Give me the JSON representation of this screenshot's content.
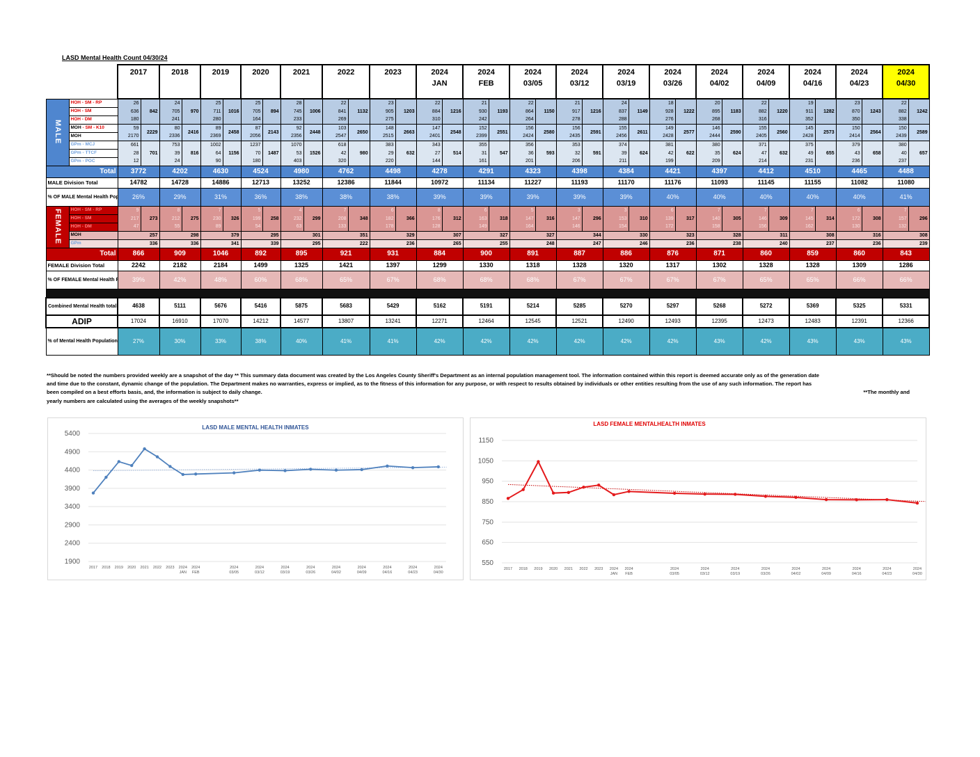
{
  "title": "LASD Mental Health Count 04/30/24",
  "highlight_color": "#ffff00",
  "periods": [
    {
      "l1": "2017",
      "l2": ""
    },
    {
      "l1": "2018",
      "l2": ""
    },
    {
      "l1": "2019",
      "l2": ""
    },
    {
      "l1": "2020",
      "l2": ""
    },
    {
      "l1": "2021",
      "l2": ""
    },
    {
      "l1": "2022",
      "l2": ""
    },
    {
      "l1": "2023",
      "l2": ""
    },
    {
      "l1": "2024",
      "l2": "JAN"
    },
    {
      "l1": "2024",
      "l2": "FEB"
    },
    {
      "l1": "2024",
      "l2": "03/05"
    },
    {
      "l1": "2024",
      "l2": "03/12"
    },
    {
      "l1": "2024",
      "l2": "03/19"
    },
    {
      "l1": "2024",
      "l2": "03/26"
    },
    {
      "l1": "2024",
      "l2": "04/02"
    },
    {
      "l1": "2024",
      "l2": "04/09"
    },
    {
      "l1": "2024",
      "l2": "04/16"
    },
    {
      "l1": "2024",
      "l2": "04/23"
    },
    {
      "l1": "2024",
      "l2": "04/30"
    }
  ],
  "male": {
    "label": "MALE",
    "hoh_labels": [
      "HOH - SM - RP",
      "HOH - SM",
      "HOH - DM"
    ],
    "moh_labels": [
      [
        "MOH ",
        "- SM - K10"
      ],
      [
        "MOH",
        ""
      ]
    ],
    "gpm_labels": [
      "GPm - MCJ",
      "GPm - TTCF",
      "GPm - POC"
    ],
    "hoh": [
      [
        "26",
        "636",
        "180",
        "842"
      ],
      [
        "24",
        "705",
        "241",
        "970"
      ],
      [
        "25",
        "711",
        "280",
        "1016"
      ],
      [
        "25",
        "705",
        "164",
        "894"
      ],
      [
        "28",
        "745",
        "233",
        "1006"
      ],
      [
        "22",
        "841",
        "269",
        "1132"
      ],
      [
        "23",
        "905",
        "275",
        "1203"
      ],
      [
        "22",
        "884",
        "310",
        "1216"
      ],
      [
        "21",
        "930",
        "242",
        "1193"
      ],
      [
        "22",
        "864",
        "264",
        "1150"
      ],
      [
        "21",
        "917",
        "278",
        "1216"
      ],
      [
        "24",
        "837",
        "288",
        "1149"
      ],
      [
        "18",
        "928",
        "276",
        "1222"
      ],
      [
        "20",
        "895",
        "268",
        "1183"
      ],
      [
        "22",
        "882",
        "316",
        "1220"
      ],
      [
        "19",
        "911",
        "352",
        "1282"
      ],
      [
        "23",
        "870",
        "350",
        "1243"
      ],
      [
        "22",
        "882",
        "338",
        "1242"
      ]
    ],
    "moh": [
      [
        "59",
        "2170",
        "2229"
      ],
      [
        "80",
        "2336",
        "2416"
      ],
      [
        "89",
        "2369",
        "2458"
      ],
      [
        "87",
        "2056",
        "2143"
      ],
      [
        "92",
        "2356",
        "2448"
      ],
      [
        "103",
        "2547",
        "2650"
      ],
      [
        "148",
        "2515",
        "2663"
      ],
      [
        "147",
        "2401",
        "2548"
      ],
      [
        "152",
        "2399",
        "2551"
      ],
      [
        "156",
        "2424",
        "2580"
      ],
      [
        "156",
        "2435",
        "2591"
      ],
      [
        "155",
        "2456",
        "2611"
      ],
      [
        "149",
        "2428",
        "2577"
      ],
      [
        "146",
        "2444",
        "2590"
      ],
      [
        "155",
        "2405",
        "2560"
      ],
      [
        "145",
        "2428",
        "2573"
      ],
      [
        "150",
        "2414",
        "2564"
      ],
      [
        "150",
        "2439",
        "2589"
      ]
    ],
    "gpm": [
      [
        "661",
        "28",
        "12",
        "701"
      ],
      [
        "753",
        "39",
        "24",
        "816"
      ],
      [
        "1002",
        "64",
        "90",
        "1156"
      ],
      [
        "1237",
        "70",
        "180",
        "1487"
      ],
      [
        "1070",
        "53",
        "403",
        "1526"
      ],
      [
        "618",
        "42",
        "320",
        "980"
      ],
      [
        "383",
        "29",
        "220",
        "632"
      ],
      [
        "343",
        "27",
        "144",
        "514"
      ],
      [
        "355",
        "31",
        "161",
        "547"
      ],
      [
        "356",
        "36",
        "201",
        "593"
      ],
      [
        "353",
        "32",
        "206",
        "591"
      ],
      [
        "374",
        "39",
        "211",
        "624"
      ],
      [
        "381",
        "42",
        "199",
        "622"
      ],
      [
        "380",
        "35",
        "209",
        "624"
      ],
      [
        "371",
        "47",
        "214",
        "632"
      ],
      [
        "375",
        "49",
        "231",
        "655"
      ],
      [
        "379",
        "43",
        "236",
        "658"
      ],
      [
        "380",
        "40",
        "237",
        "657"
      ]
    ],
    "total_label": "Total",
    "total": [
      "3772",
      "4202",
      "4630",
      "4524",
      "4980",
      "4762",
      "4498",
      "4278",
      "4291",
      "4323",
      "4398",
      "4384",
      "4421",
      "4397",
      "4412",
      "4510",
      "4465",
      "4488"
    ],
    "division_label": "MALE Division Total",
    "division": [
      "14782",
      "14728",
      "14886",
      "12713",
      "13252",
      "12386",
      "11844",
      "10972",
      "11134",
      "11227",
      "11193",
      "11170",
      "11176",
      "11093",
      "11145",
      "11155",
      "11082",
      "11080"
    ],
    "pct_label": "% OF MALE Mental Health Population",
    "pct": [
      "26%",
      "29%",
      "31%",
      "36%",
      "38%",
      "38%",
      "38%",
      "39%",
      "39%",
      "39%",
      "39%",
      "39%",
      "40%",
      "40%",
      "40%",
      "40%",
      "40%",
      "41%"
    ]
  },
  "female": {
    "label": "FEMALE",
    "hoh_labels": [
      "HOH - SM - RP",
      "HOH - SM",
      "HOH - DM"
    ],
    "moh_label": "MOH",
    "gpm_label": "GPm",
    "hoh": [
      [
        "9",
        "217",
        "47",
        "273"
      ],
      [
        "8",
        "212",
        "55",
        "275"
      ],
      [
        "7",
        "230",
        "89",
        "326"
      ],
      [
        "5",
        "199",
        "54",
        "258"
      ],
      [
        "4",
        "232",
        "63",
        "299"
      ],
      [
        "7",
        "208",
        "133",
        "348"
      ],
      [
        "6",
        "182",
        "178",
        "366"
      ],
      [
        "8",
        "176",
        "128",
        "312"
      ],
      [
        "6",
        "163",
        "149",
        "318"
      ],
      [
        "5",
        "147",
        "164",
        "316"
      ],
      [
        "3",
        "147",
        "146",
        "296"
      ],
      [
        "3",
        "153",
        "154",
        "310"
      ],
      [
        "6",
        "139",
        "172",
        "317"
      ],
      [
        "7",
        "140",
        "158",
        "305"
      ],
      [
        "7",
        "146",
        "156",
        "309"
      ],
      [
        "7",
        "145",
        "162",
        "314"
      ],
      [
        "6",
        "172",
        "130",
        "308"
      ],
      [
        "7",
        "157",
        "132",
        "296"
      ]
    ],
    "moh": [
      "257",
      "298",
      "379",
      "295",
      "301",
      "351",
      "329",
      "307",
      "327",
      "327",
      "344",
      "330",
      "323",
      "328",
      "311",
      "308",
      "316",
      "308"
    ],
    "gpm": [
      "336",
      "336",
      "341",
      "339",
      "295",
      "222",
      "236",
      "265",
      "255",
      "248",
      "247",
      "246",
      "236",
      "238",
      "240",
      "237",
      "236",
      "239"
    ],
    "total_label": "Total",
    "total": [
      "866",
      "909",
      "1046",
      "892",
      "895",
      "921",
      "931",
      "884",
      "900",
      "891",
      "887",
      "886",
      "876",
      "871",
      "860",
      "859",
      "860",
      "843"
    ],
    "division_label": "FEMALE Division Total",
    "division": [
      "2242",
      "2182",
      "2184",
      "1499",
      "1325",
      "1421",
      "1397",
      "1299",
      "1330",
      "1318",
      "1328",
      "1320",
      "1317",
      "1302",
      "1328",
      "1328",
      "1309",
      "1286"
    ],
    "pct_label": "% OF FEMALE Mental Health Population",
    "pct": [
      "39%",
      "42%",
      "48%",
      "60%",
      "68%",
      "65%",
      "67%",
      "68%",
      "68%",
      "68%",
      "67%",
      "67%",
      "67%",
      "67%",
      "65%",
      "65%",
      "66%",
      "66%"
    ]
  },
  "combined": {
    "label": "Combined Mental Health total",
    "values": [
      "4638",
      "5111",
      "5676",
      "5416",
      "5875",
      "5683",
      "5429",
      "5162",
      "5191",
      "5214",
      "5285",
      "5270",
      "5297",
      "5268",
      "5272",
      "5369",
      "5325",
      "5331"
    ]
  },
  "adip": {
    "label": "ADIP",
    "values": [
      "17024",
      "16910",
      "17070",
      "14212",
      "14577",
      "13807",
      "13241",
      "12271",
      "12464",
      "12545",
      "12521",
      "12490",
      "12493",
      "12395",
      "12473",
      "12483",
      "12391",
      "12366"
    ]
  },
  "mh_pct": {
    "label": "% of Mental Health Population",
    "values": [
      "27%",
      "30%",
      "33%",
      "38%",
      "40%",
      "41%",
      "41%",
      "42%",
      "42%",
      "42%",
      "42%",
      "42%",
      "42%",
      "43%",
      "42%",
      "43%",
      "43%",
      "43%"
    ]
  },
  "notes": {
    "lines": [
      "**Should be noted the numbers provided weekly are a snapshot of the day ** This summary data document was created by the Los Angeles County Sheriff's Department as an internal population management tool.  The information contained within this report is deemed accurate only as of the generation date",
      "and time due to the constant, dynamic change of the population.  The Department makes no warranties, express or implied, as to the fitness of this information for any purpose, or with respect to results obtained by individuals or other entities resulting from the use of any such information.  The report has",
      "been compiled on a best efforts basis, and, the information is subject to daily change.",
      "yearly numbers are calculated using the averages of the weekly snapshots**"
    ],
    "line3_right": "**The monthly and"
  },
  "chart_data": [
    {
      "type": "line",
      "title": "LASD MALE MENTAL HEALTH INMATES",
      "color": "#4f81bd",
      "trendline": "linear",
      "categories": [
        [
          "2017",
          ""
        ],
        [
          "2018",
          ""
        ],
        [
          "2019",
          ""
        ],
        [
          "2020",
          ""
        ],
        [
          "2021",
          ""
        ],
        [
          "2022",
          ""
        ],
        [
          "2023",
          ""
        ],
        [
          "2024",
          "JAN"
        ],
        [
          "2024",
          "FEB"
        ],
        [
          "2024",
          "03/05"
        ],
        [
          "2024",
          "03/12"
        ],
        [
          "2024",
          "03/19"
        ],
        [
          "2024",
          "03/26"
        ],
        [
          "2024",
          "04/02"
        ],
        [
          "2024",
          "04/09"
        ],
        [
          "2024",
          "04/16"
        ],
        [
          "2024",
          "04/23"
        ],
        [
          "2024",
          "04/30"
        ]
      ],
      "values": [
        3772,
        4202,
        4630,
        4524,
        4980,
        4762,
        4498,
        4278,
        4291,
        4323,
        4398,
        4384,
        4421,
        4397,
        4412,
        4510,
        4465,
        4488
      ],
      "ylim": [
        1900,
        5400
      ],
      "yticks": [
        "5400",
        "4900",
        "4400",
        "3900",
        "3400",
        "2900",
        "2400",
        "1900"
      ],
      "grid": true
    },
    {
      "type": "line",
      "title": "LASD FEMALE MENTALHEALTH INMATES",
      "color": "#e41a1c",
      "trendline": "linear",
      "categories": [
        [
          "2017",
          ""
        ],
        [
          "2018",
          ""
        ],
        [
          "2019",
          ""
        ],
        [
          "2020",
          ""
        ],
        [
          "2021",
          ""
        ],
        [
          "2022",
          ""
        ],
        [
          "2023",
          ""
        ],
        [
          "2024",
          "JAN"
        ],
        [
          "2024",
          "FEB"
        ],
        [
          "2024",
          "03/05"
        ],
        [
          "2024",
          "03/12"
        ],
        [
          "2024",
          "03/19"
        ],
        [
          "2024",
          "03/26"
        ],
        [
          "2024",
          "04/02"
        ],
        [
          "2024",
          "04/09"
        ],
        [
          "2024",
          "04/16"
        ],
        [
          "2024",
          "04/23"
        ],
        [
          "2024",
          "04/30"
        ]
      ],
      "values": [
        866,
        909,
        1046,
        892,
        895,
        921,
        931,
        884,
        900,
        891,
        887,
        886,
        876,
        871,
        860,
        859,
        860,
        843
      ],
      "ylim": [
        550,
        1150
      ],
      "yticks": [
        "1150",
        "1050",
        "950",
        "850",
        "750",
        "650",
        "550"
      ],
      "grid": true
    }
  ]
}
